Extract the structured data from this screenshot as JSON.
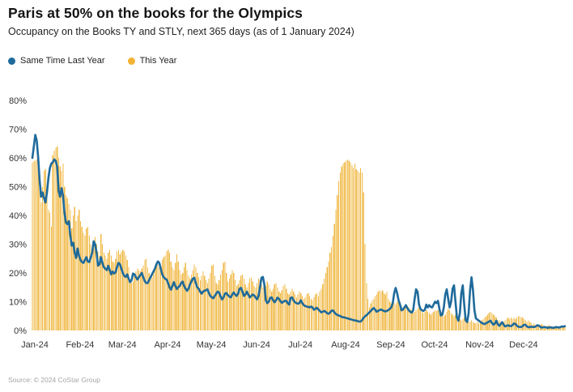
{
  "header": {
    "title": "Paris at 50% on the books for the Olympics",
    "subtitle": "Occupancy on the Books TY and STLY, next 365 days (as of 1 January 2024)"
  },
  "legend": [
    {
      "label": "Same Time Last Year",
      "color": "#1f6a9b"
    },
    {
      "label": "This Year",
      "color": "#f2b233"
    }
  ],
  "source": "Source: © 2024 CoStar Group",
  "chart_data": {
    "type": "bar+line",
    "title": "Paris at 50% on the books for the Olympics",
    "subtitle": "Occupancy on the Books TY and STLY, next 365 days (as of 1 January 2024)",
    "unit": "%",
    "grid": false,
    "legend_position": "top-left",
    "x_axis": {
      "tick_labels": [
        "Jan-24",
        "Feb-24",
        "Mar-24",
        "Apr-24",
        "May-24",
        "Jun-24",
        "Jul-24",
        "Aug-24",
        "Sep-24",
        "Oct-24",
        "Nov-24",
        "Dec-24"
      ],
      "month_start_day_index": [
        0,
        31,
        60,
        91,
        121,
        152,
        182,
        213,
        244,
        274,
        305,
        335
      ],
      "days_shown": 366
    },
    "y_axis": {
      "tick_labels": [
        "0%",
        "10%",
        "20%",
        "30%",
        "40%",
        "50%",
        "60%",
        "70%",
        "80%"
      ],
      "tick_values": [
        0,
        10,
        20,
        30,
        40,
        50,
        60,
        70,
        80
      ],
      "range": [
        0,
        80
      ]
    },
    "series": [
      {
        "name": "This Year",
        "type": "bar",
        "color": "#f0b845",
        "values": [
          58.5,
          59,
          59,
          59.5,
          57,
          52,
          44.5,
          50,
          55.5,
          56,
          48,
          42,
          41,
          36,
          61,
          62.5,
          63.5,
          64,
          60,
          57,
          55.5,
          58,
          50,
          47,
          46,
          44,
          42,
          35.5,
          40,
          43,
          38,
          40,
          42,
          38,
          36,
          34,
          33,
          35.5,
          36,
          33,
          30,
          29,
          31,
          32.5,
          30,
          27.5,
          26,
          33.5,
          30,
          27,
          26,
          25,
          27,
          28,
          26,
          24,
          23.5,
          25,
          27.5,
          28,
          26.5,
          27.5,
          28,
          27.5,
          26,
          24.5,
          22,
          17.5,
          16.5,
          17,
          19,
          20.5,
          21.5,
          21,
          20.5,
          21.5,
          22.5,
          24.5,
          25,
          22,
          20,
          19,
          18.5,
          20,
          21.5,
          22.5,
          23,
          22,
          21.5,
          24.5,
          25.5,
          26,
          27.5,
          28,
          27,
          24,
          22,
          21,
          23.5,
          26.5,
          24,
          21,
          19.5,
          20,
          22,
          23.5,
          21,
          19,
          18,
          19.5,
          21,
          23,
          22,
          20,
          18.5,
          17.5,
          19,
          20.5,
          19,
          17.5,
          16.5,
          18,
          20,
          22.5,
          23,
          19,
          16.5,
          16,
          17.5,
          19.5,
          21,
          23.5,
          24,
          20,
          17,
          18,
          19.5,
          21,
          20,
          17.5,
          15.5,
          16,
          17.5,
          19,
          19.5,
          18,
          16,
          15,
          16.5,
          18,
          18.5,
          17,
          15.5,
          15,
          16.5,
          18,
          17.5,
          16,
          15,
          14,
          15.5,
          17,
          16,
          14.5,
          13.5,
          14.5,
          16,
          16.5,
          15,
          13.5,
          13,
          14,
          15.5,
          16,
          14.5,
          13,
          12.5,
          13.5,
          14.5,
          13.5,
          12.5,
          11.5,
          12.5,
          13.5,
          13,
          12,
          11,
          11.5,
          12.5,
          13,
          12,
          11,
          10.5,
          11.5,
          12.5,
          13,
          12,
          13.5,
          14.5,
          16,
          18,
          20,
          22,
          24,
          27,
          29,
          33,
          37,
          42,
          47,
          52,
          55,
          57,
          58,
          58.5,
          59,
          59.5,
          59,
          58.5,
          57.5,
          56.5,
          58,
          56,
          55.5,
          55,
          56.5,
          55,
          48,
          30,
          16.5,
          11,
          8,
          9.5,
          10.5,
          11,
          12,
          12.5,
          13.5,
          14,
          13.5,
          14,
          13,
          12.5,
          13.5,
          11,
          10,
          9.5,
          10.5,
          9.5,
          9,
          10,
          10.5,
          9.5,
          8.5,
          8,
          7.5,
          8,
          8.5,
          8,
          7.5,
          7,
          7.5,
          6.5,
          7,
          7.5,
          8,
          7,
          6.5,
          6,
          6.5,
          7,
          6.5,
          6,
          5.5,
          6,
          6.5,
          7,
          6.8,
          7,
          6.5,
          6,
          5.5,
          5,
          5.5,
          6.5,
          7.5,
          7,
          6,
          5.5,
          5,
          5.5,
          5,
          4.5,
          4,
          3.5,
          4,
          4.5,
          4,
          3.5,
          3,
          3,
          3.5,
          3,
          2.5,
          2.5,
          3,
          2.5,
          3,
          3.5,
          4,
          4.5,
          5,
          5.5,
          6,
          6.5,
          6,
          5.5,
          5,
          4.5,
          3.5,
          3.5,
          3,
          2.5,
          3,
          3.5,
          4,
          4.5,
          4,
          4.5,
          4,
          4.5,
          4,
          4.5,
          5,
          5,
          4.5,
          4.5,
          4,
          3.5,
          3,
          3.5,
          3,
          2.5,
          2,
          2.5,
          2,
          1.8,
          1.5,
          2,
          2.2,
          1.8,
          1.5,
          1.2,
          1.5,
          1.8,
          1.5,
          1.2,
          1,
          1.2,
          1.5,
          1.3,
          1,
          1,
          1.2,
          1.3,
          1.5
        ]
      },
      {
        "name": "Same Time Last Year",
        "type": "line",
        "color": "#1f6a9b",
        "values": [
          60,
          64,
          68,
          66,
          60,
          52,
          46.5,
          48,
          46,
          44.5,
          48,
          53,
          56.5,
          58,
          58.5,
          59.5,
          59,
          57,
          48.5,
          46.5,
          49.5,
          47,
          41,
          37.5,
          37,
          38,
          33,
          29.5,
          30.5,
          27,
          25.2,
          28.5,
          26,
          24.5,
          23.8,
          23.5,
          24.5,
          25.5,
          24,
          23.8,
          25.4,
          27,
          31,
          30,
          27,
          22.5,
          23,
          25.5,
          23.5,
          22,
          21.5,
          21,
          22.5,
          21,
          19.5,
          20.5,
          19.8,
          20.2,
          22,
          23.5,
          23,
          21.5,
          20,
          19,
          18.6,
          19.5,
          18,
          16.8,
          17.5,
          19.8,
          19.5,
          18.5,
          17.7,
          18.5,
          19.3,
          20,
          18.5,
          17.2,
          16.5,
          16.5,
          17.5,
          18.5,
          19.5,
          20.5,
          21.5,
          23,
          24,
          23.5,
          21.5,
          19.5,
          18.5,
          18,
          17.7,
          16.5,
          15,
          14.2,
          15.5,
          16.8,
          15.5,
          14.4,
          15,
          15.5,
          16.5,
          17,
          15.5,
          14.5,
          13.8,
          14.5,
          16,
          17,
          18,
          18.3,
          16.5,
          15,
          14.5,
          13.5,
          12.8,
          13.5,
          13.8,
          14,
          14.3,
          13,
          12,
          11.5,
          11.2,
          12,
          12.8,
          13.5,
          13.2,
          11.8,
          10.8,
          11.5,
          12.8,
          13,
          12.3,
          11.8,
          11.5,
          12.5,
          13.2,
          12.5,
          12,
          12.8,
          14.5,
          14.8,
          13.5,
          12,
          12.5,
          13.5,
          12.5,
          11.5,
          12,
          12.5,
          12.2,
          11.5,
          10.8,
          12,
          15,
          18.3,
          18.6,
          16,
          10.5,
          9.5,
          10,
          11.3,
          11.5,
          10.5,
          9.8,
          10.5,
          11.4,
          11,
          10.2,
          9.6,
          10,
          10.3,
          10.3,
          9.5,
          9,
          11.3,
          11.5,
          10.5,
          9.8,
          9.5,
          9.3,
          9.5,
          10.5,
          9.5,
          8.8,
          8.5,
          8.3,
          8.2,
          8,
          8.3,
          8,
          7.2,
          7.5,
          7.9,
          7.3,
          6.8,
          6.3,
          6.5,
          6.8,
          6.5,
          6,
          5.8,
          6.2,
          6.8,
          7,
          6.3,
          5.7,
          5.4,
          5.2,
          5,
          4.7,
          4.6,
          4.5,
          4.35,
          4.2,
          4.05,
          3.9,
          3.75,
          3.6,
          3.5,
          3.4,
          3.25,
          3.1,
          3.1,
          3.6,
          4.4,
          4.9,
          5.3,
          5.8,
          6.3,
          6.8,
          7.4,
          7.8,
          7.2,
          6.5,
          6.8,
          7.1,
          7.3,
          7,
          6.8,
          6.6,
          6.8,
          7.1,
          7.5,
          8,
          9.5,
          13,
          14.8,
          13,
          10.5,
          9,
          7,
          7.3,
          8,
          8.8,
          7.8,
          7,
          6.5,
          6.2,
          7,
          11,
          14.3,
          13.5,
          9,
          7.5,
          7,
          6.8,
          7.2,
          9,
          8,
          8.8,
          8.2,
          8,
          9,
          10,
          9.5,
          10.3,
          7.5,
          5.2,
          5.5,
          8,
          12.5,
          14.3,
          11,
          8,
          10,
          14.5,
          15.7,
          10,
          4.5,
          3.4,
          6,
          13,
          15.7,
          9,
          3.5,
          2.9,
          6,
          14,
          18.5,
          14,
          7,
          4.2,
          3.8,
          3.4,
          3,
          2.6,
          2.4,
          2.2,
          2.5,
          2.8,
          3.1,
          3.4,
          2.6,
          2,
          2.4,
          3.4,
          2.2,
          1.6,
          2.2,
          2.9,
          2,
          1.4,
          1.6,
          1.8,
          1.6,
          1.5,
          1.8,
          2.4,
          2.3,
          1.7,
          1.3,
          1.2,
          1.2,
          1.5,
          2,
          1.9,
          1.4,
          1.1,
          1.2,
          1.3,
          1.2,
          1.2,
          1.4,
          1.8,
          1.7,
          1.3,
          1,
          1.1,
          1.2,
          1.1,
          0.9,
          1,
          1.1,
          1,
          0.9,
          1,
          1.2,
          1.1,
          1,
          1.2,
          1.4,
          1.3,
          1.5
        ]
      }
    ]
  }
}
